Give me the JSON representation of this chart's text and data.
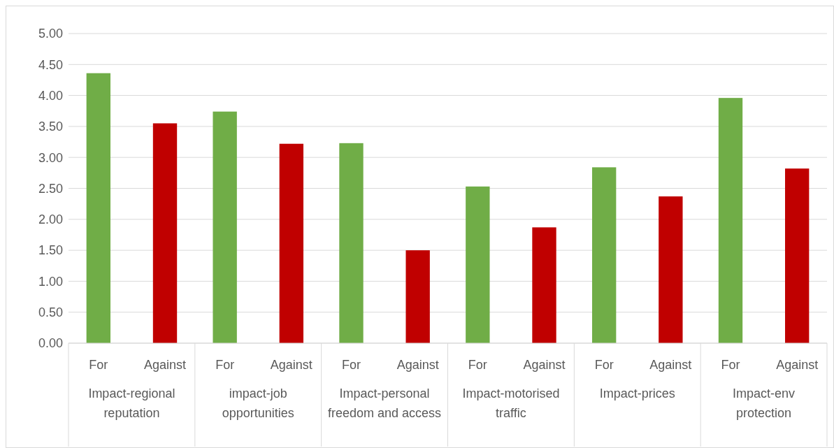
{
  "chart_data": {
    "type": "bar",
    "categories": [
      "Impact-regional reputation",
      "impact-job opportunities",
      "Impact-personal freedom and access",
      "Impact-motorised traffic",
      "Impact-prices",
      "Impact-env protection"
    ],
    "series": [
      {
        "name": "For",
        "color": "#70ad47",
        "values": [
          4.36,
          3.74,
          3.23,
          2.53,
          2.84,
          3.96
        ]
      },
      {
        "name": "Against",
        "color": "#c00000",
        "values": [
          3.55,
          3.22,
          1.5,
          1.87,
          2.37,
          2.82
        ]
      }
    ],
    "ylim": [
      0,
      5
    ],
    "yticks": [
      {
        "value": 0,
        "label": "0.00"
      },
      {
        "value": 0.5,
        "label": "0.50"
      },
      {
        "value": 1,
        "label": "1.00"
      },
      {
        "value": 1.5,
        "label": "1.50"
      },
      {
        "value": 2,
        "label": "2.00"
      },
      {
        "value": 2.5,
        "label": "2.50"
      },
      {
        "value": 3,
        "label": "3.00"
      },
      {
        "value": 3.5,
        "label": "3.50"
      },
      {
        "value": 4,
        "label": "4.00"
      },
      {
        "value": 4.5,
        "label": "4.50"
      },
      {
        "value": 5,
        "label": "5.00"
      }
    ],
    "grid": "y"
  }
}
